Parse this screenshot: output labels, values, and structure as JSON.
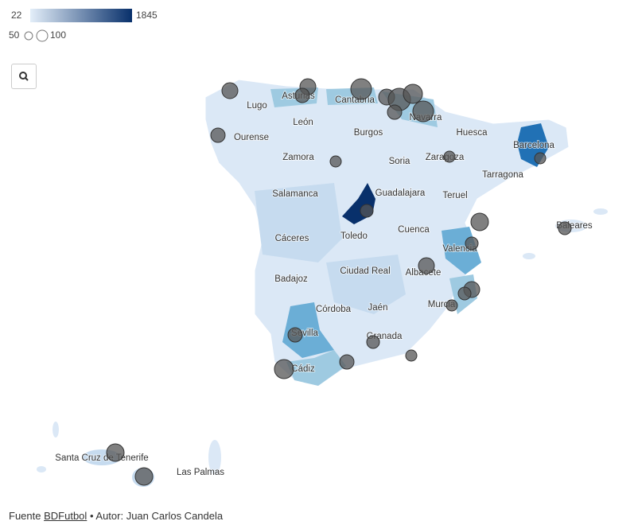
{
  "legend": {
    "color_min": 22,
    "color_max": 1845,
    "color_low": "#e3eef9",
    "color_high": "#08306b",
    "size_small": 50,
    "size_large": 100
  },
  "bubbles": {
    "color": "#555555",
    "values": [
      204,
      204,
      165,
      345,
      204,
      400,
      294,
      165,
      345,
      165,
      100,
      100,
      100,
      131,
      247,
      131,
      131,
      204,
      204,
      131,
      100,
      165,
      294,
      165,
      131,
      100,
      247,
      247
    ]
  },
  "provinces": [
    "Lugo",
    "Asturias",
    "Cantabria",
    "León",
    "Navarra",
    "Ourense",
    "Burgos",
    "Huesca",
    "Barcelona",
    "Zamora",
    "Soria",
    "Zaragoza",
    "Tarragona",
    "Salamanca",
    "Guadalajara",
    "Teruel",
    "Cuenca",
    "Baleares",
    "Cáceres",
    "Toledo",
    "Valencia",
    "Ciudad Real",
    "Albacete",
    "Badajoz",
    "Córdoba",
    "Jaén",
    "Murcia",
    "Sevilla",
    "Granada",
    "Cádiz",
    "Santa Cruz de Tenerife",
    "Las Palmas"
  ],
  "footer": {
    "source_label": "Fuente",
    "source_link": "BDFutbol",
    "separator": "•",
    "author": "Autor: Juan Carlos Candela"
  }
}
